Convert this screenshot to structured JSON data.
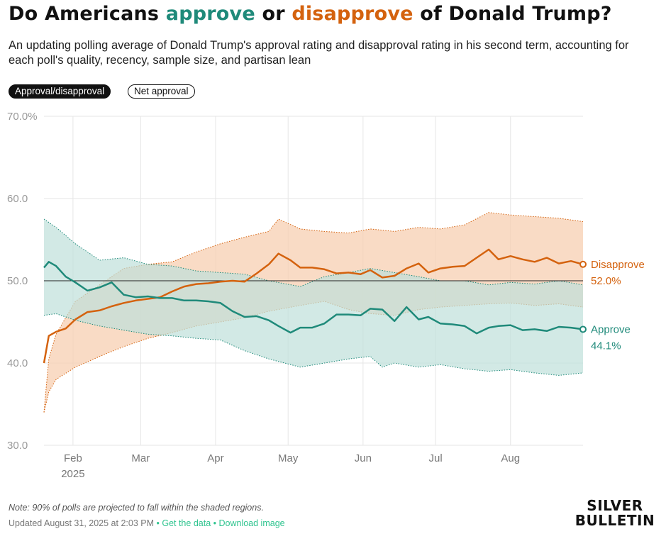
{
  "header": {
    "title_pre": "Do Americans ",
    "title_approve": "approve",
    "title_mid": " or ",
    "title_disapprove": "disapprove",
    "title_post": " of Donald Trump?",
    "subtitle": "An updating polling average of Donald Trump's approval rating and disapproval rating in his second term, accounting for each poll's quality, recency, sample size, and partisan lean"
  },
  "toggles": {
    "active_label": "Approval/disapproval",
    "inactive_label": "Net approval"
  },
  "colors": {
    "approve": "#1f8a7a",
    "approve_band": "#bfe0da",
    "disapprove": "#d4620e",
    "disapprove_band": "#f7cfb1",
    "grid": "#e6e6e6",
    "axis_text": "#999999"
  },
  "chart_data": {
    "type": "line",
    "xlabel": "",
    "ylabel": "",
    "ylim": [
      30,
      70
    ],
    "y_ticks": [
      "70.0%",
      "60.0",
      "50.0",
      "40.0",
      "30.0"
    ],
    "x_ticks": [
      {
        "date": "2025-02-01",
        "label": "Feb",
        "sublabel": "2025"
      },
      {
        "date": "2025-03-01",
        "label": "Mar",
        "sublabel": ""
      },
      {
        "date": "2025-04-01",
        "label": "Apr",
        "sublabel": ""
      },
      {
        "date": "2025-05-01",
        "label": "May",
        "sublabel": ""
      },
      {
        "date": "2025-06-01",
        "label": "Jun",
        "sublabel": ""
      },
      {
        "date": "2025-07-01",
        "label": "Jul",
        "sublabel": ""
      },
      {
        "date": "2025-08-01",
        "label": "Aug",
        "sublabel": ""
      }
    ],
    "reference_line": 50,
    "series": [
      {
        "name": "Disapprove",
        "end_label": "52.0%",
        "points": [
          [
            "2025-01-20",
            40.0
          ],
          [
            "2025-01-22",
            43.3
          ],
          [
            "2025-01-25",
            43.8
          ],
          [
            "2025-01-29",
            44.2
          ],
          [
            "2025-02-02",
            45.3
          ],
          [
            "2025-02-07",
            46.2
          ],
          [
            "2025-02-12",
            46.4
          ],
          [
            "2025-02-17",
            46.9
          ],
          [
            "2025-02-22",
            47.3
          ],
          [
            "2025-02-27",
            47.6
          ],
          [
            "2025-03-04",
            47.8
          ],
          [
            "2025-03-09",
            48.0
          ],
          [
            "2025-03-14",
            48.7
          ],
          [
            "2025-03-19",
            49.3
          ],
          [
            "2025-03-24",
            49.6
          ],
          [
            "2025-03-29",
            49.7
          ],
          [
            "2025-04-03",
            49.9
          ],
          [
            "2025-04-08",
            50.0
          ],
          [
            "2025-04-13",
            49.9
          ],
          [
            "2025-04-18",
            50.9
          ],
          [
            "2025-04-23",
            52.0
          ],
          [
            "2025-04-27",
            53.3
          ],
          [
            "2025-05-02",
            52.5
          ],
          [
            "2025-05-06",
            51.6
          ],
          [
            "2025-05-11",
            51.6
          ],
          [
            "2025-05-16",
            51.4
          ],
          [
            "2025-05-21",
            50.9
          ],
          [
            "2025-05-26",
            51.0
          ],
          [
            "2025-05-31",
            50.8
          ],
          [
            "2025-06-04",
            51.3
          ],
          [
            "2025-06-09",
            50.4
          ],
          [
            "2025-06-14",
            50.6
          ],
          [
            "2025-06-19",
            51.5
          ],
          [
            "2025-06-24",
            52.1
          ],
          [
            "2025-06-28",
            51.0
          ],
          [
            "2025-07-03",
            51.5
          ],
          [
            "2025-07-08",
            51.7
          ],
          [
            "2025-07-13",
            51.8
          ],
          [
            "2025-07-18",
            52.8
          ],
          [
            "2025-07-23",
            53.8
          ],
          [
            "2025-07-27",
            52.6
          ],
          [
            "2025-08-01",
            53.0
          ],
          [
            "2025-08-06",
            52.6
          ],
          [
            "2025-08-11",
            52.3
          ],
          [
            "2025-08-16",
            52.8
          ],
          [
            "2025-08-21",
            52.1
          ],
          [
            "2025-08-26",
            52.4
          ],
          [
            "2025-08-31",
            52.0
          ]
        ],
        "band_upper": [
          [
            "2025-01-20",
            34.0
          ],
          [
            "2025-01-22",
            40.5
          ],
          [
            "2025-01-25",
            43.5
          ],
          [
            "2025-02-02",
            47.5
          ],
          [
            "2025-02-12",
            49.5
          ],
          [
            "2025-02-22",
            51.5
          ],
          [
            "2025-03-04",
            52.0
          ],
          [
            "2025-03-14",
            52.3
          ],
          [
            "2025-03-24",
            53.5
          ],
          [
            "2025-04-03",
            54.5
          ],
          [
            "2025-04-13",
            55.3
          ],
          [
            "2025-04-23",
            56.0
          ],
          [
            "2025-04-27",
            57.5
          ],
          [
            "2025-05-06",
            56.3
          ],
          [
            "2025-05-16",
            56.0
          ],
          [
            "2025-05-26",
            55.8
          ],
          [
            "2025-06-04",
            56.3
          ],
          [
            "2025-06-14",
            56.0
          ],
          [
            "2025-06-24",
            56.5
          ],
          [
            "2025-07-03",
            56.3
          ],
          [
            "2025-07-13",
            56.8
          ],
          [
            "2025-07-23",
            58.3
          ],
          [
            "2025-08-01",
            58.0
          ],
          [
            "2025-08-11",
            57.8
          ],
          [
            "2025-08-21",
            57.6
          ],
          [
            "2025-08-31",
            57.2
          ]
        ],
        "band_lower": [
          [
            "2025-01-20",
            34.0
          ],
          [
            "2025-01-22",
            36.5
          ],
          [
            "2025-01-25",
            38.0
          ],
          [
            "2025-02-02",
            39.5
          ],
          [
            "2025-02-12",
            40.8
          ],
          [
            "2025-02-22",
            42.0
          ],
          [
            "2025-03-04",
            43.0
          ],
          [
            "2025-03-14",
            43.7
          ],
          [
            "2025-03-24",
            44.5
          ],
          [
            "2025-04-03",
            45.0
          ],
          [
            "2025-04-13",
            45.5
          ],
          [
            "2025-04-23",
            46.3
          ],
          [
            "2025-05-06",
            47.0
          ],
          [
            "2025-05-16",
            47.5
          ],
          [
            "2025-05-26",
            46.5
          ],
          [
            "2025-06-04",
            46.0
          ],
          [
            "2025-06-14",
            45.8
          ],
          [
            "2025-06-24",
            46.5
          ],
          [
            "2025-07-03",
            46.8
          ],
          [
            "2025-07-13",
            47.0
          ],
          [
            "2025-07-23",
            47.2
          ],
          [
            "2025-08-01",
            47.3
          ],
          [
            "2025-08-11",
            47.0
          ],
          [
            "2025-08-21",
            47.2
          ],
          [
            "2025-08-31",
            46.8
          ]
        ]
      },
      {
        "name": "Approve",
        "end_label": "44.1%",
        "points": [
          [
            "2025-01-20",
            51.6
          ],
          [
            "2025-01-22",
            52.3
          ],
          [
            "2025-01-25",
            51.8
          ],
          [
            "2025-01-29",
            50.5
          ],
          [
            "2025-02-02",
            49.8
          ],
          [
            "2025-02-07",
            48.8
          ],
          [
            "2025-02-12",
            49.2
          ],
          [
            "2025-02-17",
            49.8
          ],
          [
            "2025-02-22",
            48.3
          ],
          [
            "2025-02-27",
            48.0
          ],
          [
            "2025-03-04",
            48.1
          ],
          [
            "2025-03-09",
            47.9
          ],
          [
            "2025-03-14",
            47.9
          ],
          [
            "2025-03-19",
            47.6
          ],
          [
            "2025-03-24",
            47.6
          ],
          [
            "2025-03-29",
            47.5
          ],
          [
            "2025-04-03",
            47.3
          ],
          [
            "2025-04-08",
            46.3
          ],
          [
            "2025-04-13",
            45.6
          ],
          [
            "2025-04-18",
            45.7
          ],
          [
            "2025-04-23",
            45.2
          ],
          [
            "2025-04-27",
            44.5
          ],
          [
            "2025-05-02",
            43.7
          ],
          [
            "2025-05-06",
            44.3
          ],
          [
            "2025-05-11",
            44.3
          ],
          [
            "2025-05-16",
            44.8
          ],
          [
            "2025-05-21",
            45.9
          ],
          [
            "2025-05-26",
            45.9
          ],
          [
            "2025-05-31",
            45.8
          ],
          [
            "2025-06-04",
            46.6
          ],
          [
            "2025-06-09",
            46.5
          ],
          [
            "2025-06-14",
            45.1
          ],
          [
            "2025-06-19",
            46.8
          ],
          [
            "2025-06-24",
            45.3
          ],
          [
            "2025-06-28",
            45.6
          ],
          [
            "2025-07-03",
            44.8
          ],
          [
            "2025-07-08",
            44.7
          ],
          [
            "2025-07-13",
            44.5
          ],
          [
            "2025-07-18",
            43.6
          ],
          [
            "2025-07-23",
            44.3
          ],
          [
            "2025-07-27",
            44.5
          ],
          [
            "2025-08-01",
            44.6
          ],
          [
            "2025-08-06",
            44.0
          ],
          [
            "2025-08-11",
            44.1
          ],
          [
            "2025-08-16",
            43.9
          ],
          [
            "2025-08-21",
            44.4
          ],
          [
            "2025-08-26",
            44.3
          ],
          [
            "2025-08-31",
            44.1
          ]
        ],
        "band_upper": [
          [
            "2025-01-20",
            57.5
          ],
          [
            "2025-01-25",
            56.5
          ],
          [
            "2025-02-02",
            54.5
          ],
          [
            "2025-02-12",
            52.5
          ],
          [
            "2025-02-22",
            52.8
          ],
          [
            "2025-03-04",
            52.0
          ],
          [
            "2025-03-14",
            51.8
          ],
          [
            "2025-03-24",
            51.2
          ],
          [
            "2025-04-03",
            51.0
          ],
          [
            "2025-04-13",
            50.8
          ],
          [
            "2025-04-23",
            50.0
          ],
          [
            "2025-05-06",
            49.3
          ],
          [
            "2025-05-16",
            50.5
          ],
          [
            "2025-05-26",
            51.0
          ],
          [
            "2025-06-04",
            51.5
          ],
          [
            "2025-06-14",
            51.0
          ],
          [
            "2025-06-24",
            50.5
          ],
          [
            "2025-07-03",
            50.0
          ],
          [
            "2025-07-13",
            50.0
          ],
          [
            "2025-07-23",
            49.5
          ],
          [
            "2025-08-01",
            49.8
          ],
          [
            "2025-08-11",
            49.6
          ],
          [
            "2025-08-21",
            50.0
          ],
          [
            "2025-08-31",
            49.5
          ]
        ],
        "band_lower": [
          [
            "2025-01-20",
            45.8
          ],
          [
            "2025-01-25",
            46.0
          ],
          [
            "2025-02-02",
            45.2
          ],
          [
            "2025-02-12",
            44.5
          ],
          [
            "2025-02-22",
            44.0
          ],
          [
            "2025-03-04",
            43.5
          ],
          [
            "2025-03-14",
            43.3
          ],
          [
            "2025-03-24",
            43.0
          ],
          [
            "2025-04-03",
            42.8
          ],
          [
            "2025-04-13",
            41.5
          ],
          [
            "2025-04-23",
            40.5
          ],
          [
            "2025-05-06",
            39.5
          ],
          [
            "2025-05-16",
            40.0
          ],
          [
            "2025-05-26",
            40.5
          ],
          [
            "2025-06-04",
            40.8
          ],
          [
            "2025-06-09",
            39.5
          ],
          [
            "2025-06-14",
            40.0
          ],
          [
            "2025-06-24",
            39.5
          ],
          [
            "2025-07-03",
            39.8
          ],
          [
            "2025-07-13",
            39.3
          ],
          [
            "2025-07-23",
            39.0
          ],
          [
            "2025-08-01",
            39.2
          ],
          [
            "2025-08-11",
            38.8
          ],
          [
            "2025-08-21",
            38.5
          ],
          [
            "2025-08-31",
            38.8
          ]
        ]
      }
    ]
  },
  "footer": {
    "note": "Note: 90% of polls are projected to fall within the shaded regions.",
    "updated": "Updated August 31, 2025 at 2:03 PM",
    "sep1": " • ",
    "get_data": "Get the data",
    "sep2": " • ",
    "download": "Download image"
  },
  "logo": {
    "line1": "SILVER",
    "line2": "BULLETIN"
  }
}
